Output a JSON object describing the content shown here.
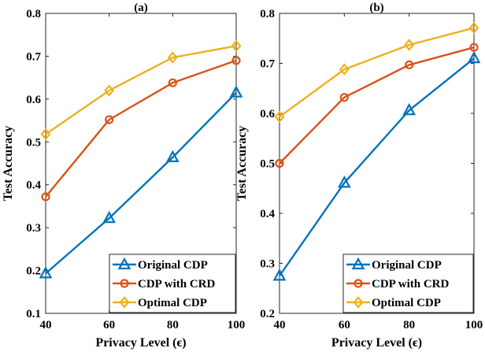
{
  "chart_data": [
    {
      "type": "line",
      "title": "(a)",
      "xlabel": "Privacy Level (ϵ)",
      "ylabel": "Test Accuracy",
      "x": [
        40,
        60,
        80,
        100
      ],
      "xlim": [
        40,
        100
      ],
      "ylim": [
        0.1,
        0.8
      ],
      "xticks": [
        "40",
        "60",
        "80",
        "100"
      ],
      "yticks": [
        "0.1",
        "0.2",
        "0.3",
        "0.4",
        "0.5",
        "0.6",
        "0.7",
        "0.8"
      ],
      "grid": false,
      "legend_position": "bottom-right",
      "series": [
        {
          "name": "Original CDP",
          "color": "#0072BD",
          "marker": "triangle",
          "values": [
            0.193,
            0.322,
            0.464,
            0.615
          ]
        },
        {
          "name": "CDP with CRD",
          "color": "#D95319",
          "marker": "circle",
          "values": [
            0.372,
            0.552,
            0.638,
            0.69
          ]
        },
        {
          "name": "Optimal CDP",
          "color": "#EDB120",
          "marker": "diamond",
          "values": [
            0.518,
            0.62,
            0.697,
            0.724
          ]
        }
      ]
    },
    {
      "type": "line",
      "title": "(b)",
      "xlabel": "Privacy Level (ϵ)",
      "ylabel": "Test Accuracy",
      "x": [
        40,
        60,
        80,
        100
      ],
      "xlim": [
        40,
        100
      ],
      "ylim": [
        0.2,
        0.8
      ],
      "xticks": [
        "40",
        "60",
        "80",
        "100"
      ],
      "yticks": [
        "0.2",
        "0.3",
        "0.4",
        "0.5",
        "0.6",
        "0.7",
        "0.8"
      ],
      "grid": false,
      "legend_position": "bottom-right",
      "series": [
        {
          "name": "Original CDP",
          "color": "#0072BD",
          "marker": "triangle",
          "values": [
            0.275,
            0.461,
            0.606,
            0.71
          ]
        },
        {
          "name": "CDP with CRD",
          "color": "#D95319",
          "marker": "circle",
          "values": [
            0.5,
            0.632,
            0.697,
            0.732
          ]
        },
        {
          "name": "Optimal CDP",
          "color": "#EDB120",
          "marker": "diamond",
          "values": [
            0.593,
            0.688,
            0.737,
            0.771
          ]
        }
      ]
    }
  ]
}
